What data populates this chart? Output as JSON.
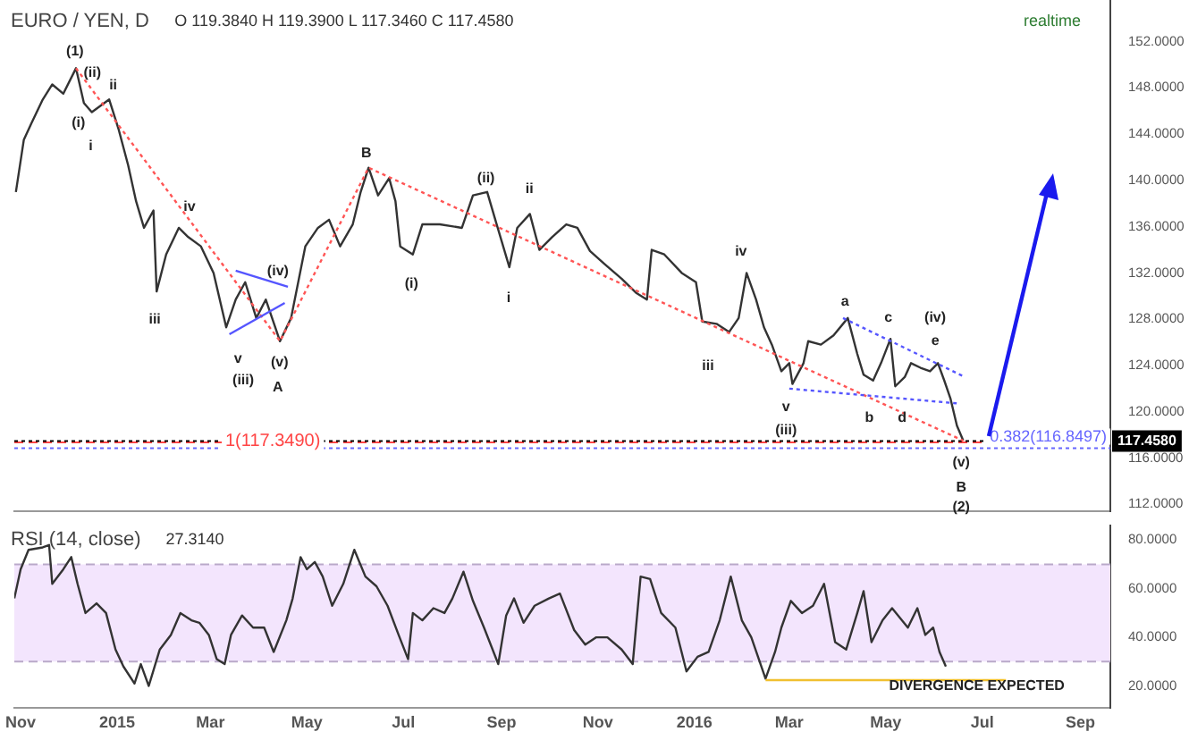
{
  "chart_data": [
    {
      "type": "line",
      "title": "EURO / YEN, D",
      "subtitle": "O 119.3840 H 119.3900 L 117.3460 C 117.4580",
      "grid": false,
      "tick_labels": "y",
      "xlim": [
        "2014-10-28",
        "2016-09-20"
      ],
      "ylim": [
        111.4,
        155.6
      ],
      "yticks": [
        {
          "value": 112,
          "label": "112.0000"
        },
        {
          "value": 116,
          "label": "116.0000"
        },
        {
          "value": 120,
          "label": "120.0000"
        },
        {
          "value": 124,
          "label": "124.0000"
        },
        {
          "value": 128,
          "label": "128.0000"
        },
        {
          "value": 132,
          "label": "132.0000"
        },
        {
          "value": 136,
          "label": "136.0000"
        },
        {
          "value": 140,
          "label": "140.0000"
        },
        {
          "value": 144,
          "label": "144.0000"
        },
        {
          "value": 148,
          "label": "148.0000"
        },
        {
          "value": 152,
          "label": "152.0000"
        }
      ],
      "series": [
        {
          "color": "#333333",
          "x": [
            "2014-10-29",
            "2014-11-03",
            "2014-11-08",
            "2014-11-15",
            "2014-11-21",
            "2014-11-28",
            "2014-12-06",
            "2014-12-11",
            "2014-12-16",
            "2014-12-27",
            "2015-01-02",
            "2015-01-08",
            "2015-01-13",
            "2015-01-18",
            "2015-01-24",
            "2015-01-26",
            "2015-02-01",
            "2015-02-09",
            "2015-02-15",
            "2015-02-23",
            "2015-03-03",
            "2015-03-11",
            "2015-03-17",
            "2015-03-23",
            "2015-03-30",
            "2015-04-05",
            "2015-04-14",
            "2015-04-21",
            "2015-04-30",
            "2015-05-08",
            "2015-05-15",
            "2015-05-22",
            "2015-05-30",
            "2015-06-04",
            "2015-06-09",
            "2015-06-15",
            "2015-06-22",
            "2015-06-26",
            "2015-06-29",
            "2015-07-07",
            "2015-07-13",
            "2015-07-24",
            "2015-08-07",
            "2015-08-14",
            "2015-08-23",
            "2015-08-29",
            "2015-09-06",
            "2015-09-11",
            "2015-09-19",
            "2015-09-25",
            "2015-10-03",
            "2015-10-12",
            "2015-10-19",
            "2015-10-27",
            "2015-11-05",
            "2015-11-16",
            "2015-11-25",
            "2015-12-02",
            "2015-12-05",
            "2015-12-13",
            "2015-12-24",
            "2016-01-02",
            "2016-01-06",
            "2016-01-15",
            "2016-01-23",
            "2016-01-29",
            "2016-02-03",
            "2016-02-09",
            "2016-02-14",
            "2016-02-19",
            "2016-02-25",
            "2016-03-01",
            "2016-03-03",
            "2016-03-10",
            "2016-03-13",
            "2016-03-21",
            "2016-03-29",
            "2016-04-07",
            "2016-04-13",
            "2016-04-17",
            "2016-04-23",
            "2016-04-28",
            "2016-05-04",
            "2016-05-07",
            "2016-05-13",
            "2016-05-17",
            "2016-05-23",
            "2016-05-29",
            "2016-06-03",
            "2016-06-07",
            "2016-06-11",
            "2016-06-15",
            "2016-06-19"
          ],
          "values": [
            139.0,
            143.5,
            145.0,
            147.0,
            148.3,
            147.5,
            149.7,
            146.7,
            145.9,
            147.0,
            144.4,
            141.3,
            138.2,
            135.9,
            137.4,
            130.4,
            133.6,
            135.9,
            135.1,
            134.3,
            132.0,
            127.3,
            129.7,
            131.2,
            128.1,
            129.7,
            126.1,
            128.1,
            134.3,
            135.9,
            136.6,
            134.3,
            136.2,
            139.0,
            141.1,
            138.7,
            140.2,
            138.2,
            134.3,
            133.6,
            136.2,
            136.2,
            135.9,
            138.7,
            139.0,
            136.2,
            132.5,
            135.9,
            137.1,
            134.0,
            135.1,
            136.2,
            135.9,
            133.9,
            132.8,
            131.5,
            130.3,
            129.7,
            134.0,
            133.6,
            132.0,
            131.2,
            127.8,
            127.6,
            126.9,
            128.1,
            132.0,
            129.7,
            127.3,
            125.8,
            123.5,
            124.2,
            122.4,
            124.2,
            126.1,
            125.8,
            126.6,
            128.1,
            125.0,
            123.2,
            122.7,
            124.2,
            126.3,
            122.2,
            123.0,
            124.2,
            123.8,
            123.5,
            124.2,
            122.7,
            121.1,
            118.8,
            117.5
          ]
        },
        {
          "color": "#ff5555",
          "line_style": "dotted",
          "x": [
            "2014-12-06",
            "2015-04-14",
            "2015-06-09",
            "2016-06-19"
          ],
          "values": [
            149.7,
            126.1,
            141.1,
            117.5
          ]
        },
        {
          "color": "#5555ff",
          "x": [
            "2015-03-17",
            "2015-04-19"
          ],
          "values": [
            132.2,
            130.8
          ]
        },
        {
          "color": "#5555ff",
          "x": [
            "2015-03-13",
            "2015-04-17"
          ],
          "values": [
            126.7,
            129.4
          ]
        },
        {
          "color": "#5555ff",
          "line_style": "dotted",
          "x": [
            "2016-04-04",
            "2016-06-20"
          ],
          "values": [
            128.1,
            123.0
          ]
        },
        {
          "color": "#5555ff",
          "line_style": "dotted",
          "x": [
            "2016-03-01",
            "2016-06-17"
          ],
          "values": [
            122.0,
            120.7
          ]
        }
      ],
      "ref_lines": [
        {
          "axis": "y",
          "value": 117.349,
          "label": "1(117.3490)",
          "color": "#ff4444",
          "line_style": "dashed"
        },
        {
          "axis": "y",
          "value": 116.8497,
          "label": "0.382(116.8497)",
          "color": "#6666ff",
          "line_style": "dotted"
        },
        {
          "axis": "y",
          "value": 117.458,
          "label": "117.4580",
          "color": "#000000",
          "line_style": "dotted"
        }
      ],
      "annotations": [
        "realtime",
        "(1)",
        "(ii)",
        "(i)",
        "ii",
        "i",
        "iv",
        "iii",
        "(iv)",
        "v",
        "(iii)",
        "(v)",
        "A",
        "B",
        "(i)",
        "(ii)",
        "ii",
        "i",
        "iii",
        "iv",
        "v",
        "(iii)",
        "a",
        "b",
        "c",
        "d",
        "(iv)",
        "e",
        "(v)",
        "B",
        "(2)"
      ]
    },
    {
      "type": "line",
      "title": "RSI (14, close)",
      "subtitle": "27.3140",
      "grid": false,
      "xlim": [
        "2014-10-28",
        "2016-09-20"
      ],
      "ylim": [
        11,
        86
      ],
      "xticks": [
        {
          "value": "2014-11-01",
          "label": "Nov"
        },
        {
          "value": "2015-01-01",
          "label": "2015"
        },
        {
          "value": "2015-03-01",
          "label": "Mar"
        },
        {
          "value": "2015-05-01",
          "label": "May"
        },
        {
          "value": "2015-07-01",
          "label": "Jul"
        },
        {
          "value": "2015-09-01",
          "label": "Sep"
        },
        {
          "value": "2015-11-01",
          "label": "Nov"
        },
        {
          "value": "2016-01-01",
          "label": "2016"
        },
        {
          "value": "2016-03-01",
          "label": "Mar"
        },
        {
          "value": "2016-05-01",
          "label": "May"
        },
        {
          "value": "2016-07-01",
          "label": "Jul"
        },
        {
          "value": "2016-09-01",
          "label": "Sep"
        }
      ],
      "yticks": [
        {
          "value": 20,
          "label": "20.0000"
        },
        {
          "value": 40,
          "label": "40.0000"
        },
        {
          "value": 60,
          "label": "60.0000"
        },
        {
          "value": 80,
          "label": "80.0000"
        }
      ],
      "bands": [
        {
          "axis": "y",
          "from": 30,
          "to": 70,
          "color": "#f3e5fd"
        }
      ],
      "ref_lines": [
        {
          "axis": "y",
          "value": 30,
          "color": "#b9a9c9",
          "line_style": "dashed"
        },
        {
          "axis": "y",
          "value": 70,
          "color": "#b9a9c9",
          "line_style": "dashed"
        }
      ],
      "series": [
        {
          "color": "#333333",
          "x": [
            "2014-10-28",
            "2014-11-01",
            "2014-11-06",
            "2014-11-15",
            "2014-11-19",
            "2014-11-21",
            "2014-11-28",
            "2014-12-03",
            "2014-12-07",
            "2014-12-12",
            "2014-12-19",
            "2014-12-25",
            "2014-12-31",
            "2015-01-05",
            "2015-01-12",
            "2015-01-16",
            "2015-01-21",
            "2015-01-28",
            "2015-02-04",
            "2015-02-10",
            "2015-02-17",
            "2015-02-22",
            "2015-02-28",
            "2015-03-05",
            "2015-03-10",
            "2015-03-14",
            "2015-03-21",
            "2015-03-28",
            "2015-04-04",
            "2015-04-10",
            "2015-04-18",
            "2015-04-22",
            "2015-04-27",
            "2015-05-01",
            "2015-05-06",
            "2015-05-11",
            "2015-05-17",
            "2015-05-24",
            "2015-05-31",
            "2015-06-07",
            "2015-06-14",
            "2015-06-21",
            "2015-06-28",
            "2015-07-04",
            "2015-07-07",
            "2015-07-13",
            "2015-07-20",
            "2015-07-27",
            "2015-08-01",
            "2015-08-08",
            "2015-08-14",
            "2015-08-21",
            "2015-08-30",
            "2015-09-04",
            "2015-09-09",
            "2015-09-15",
            "2015-09-22",
            "2015-10-01",
            "2015-10-08",
            "2015-10-17",
            "2015-10-24",
            "2015-10-31",
            "2015-11-07",
            "2015-11-16",
            "2015-11-23",
            "2015-11-28",
            "2015-12-04",
            "2015-12-11",
            "2015-12-20",
            "2015-12-27",
            "2016-01-03",
            "2016-01-10",
            "2016-01-17",
            "2016-01-24",
            "2016-01-31",
            "2016-02-06",
            "2016-02-15",
            "2016-02-21",
            "2016-02-25",
            "2016-03-02",
            "2016-03-09",
            "2016-03-16",
            "2016-03-23",
            "2016-03-30",
            "2016-04-06",
            "2016-04-13",
            "2016-04-17",
            "2016-04-22",
            "2016-04-29",
            "2016-05-05",
            "2016-05-15",
            "2016-05-21",
            "2016-05-26",
            "2016-05-31",
            "2016-06-04",
            "2016-06-08"
          ],
          "values": [
            56,
            68,
            76,
            77,
            78,
            62,
            68,
            73,
            62,
            50,
            54,
            50,
            35,
            28,
            21,
            29,
            20,
            35,
            41,
            50,
            47,
            46,
            41,
            31,
            29,
            41,
            49,
            44,
            44,
            34,
            47,
            56,
            73,
            68,
            71,
            65,
            53,
            62,
            76,
            65,
            61,
            53,
            41,
            31,
            50,
            47,
            52,
            50,
            56,
            67,
            55,
            44,
            29,
            49,
            56,
            46,
            53,
            56,
            58,
            43,
            37,
            40,
            40,
            35,
            29,
            65,
            64,
            50,
            44,
            26,
            32,
            34,
            47,
            65,
            47,
            40,
            23,
            34,
            44,
            55,
            50,
            53,
            62,
            38,
            35,
            50,
            59,
            38,
            47,
            52,
            44,
            52,
            41,
            44,
            34,
            28
          ]
        },
        {
          "color": "#f0c030",
          "x": [
            "2016-02-15",
            "2016-07-16"
          ],
          "values": [
            22.4,
            22.4
          ]
        }
      ],
      "annotations": [
        "DIVERGENCE EXPECTED"
      ]
    }
  ]
}
